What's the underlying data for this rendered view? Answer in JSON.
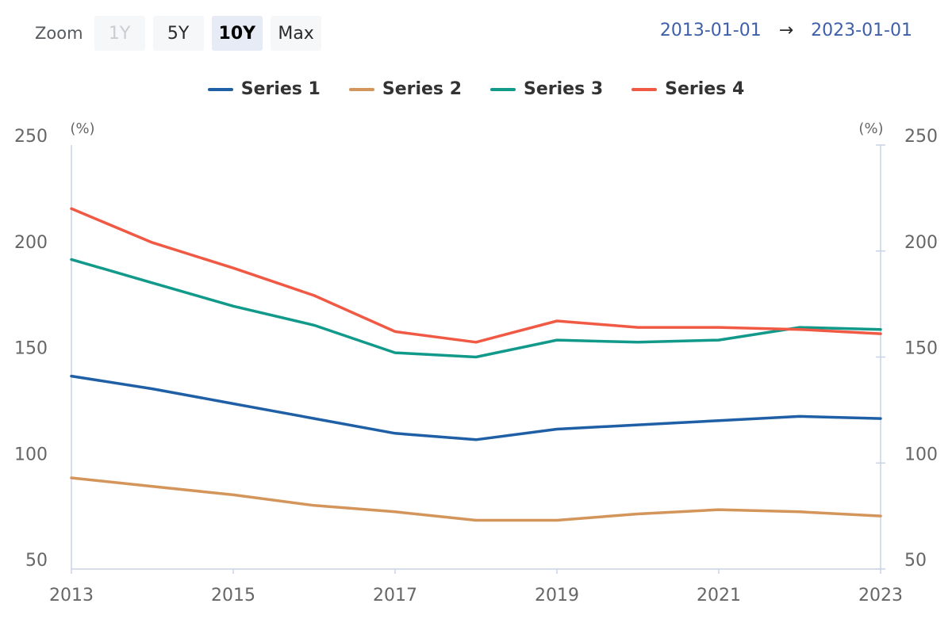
{
  "zoom": {
    "label": "Zoom",
    "buttons": [
      {
        "label": "1Y",
        "state": "disabled"
      },
      {
        "label": "5Y",
        "state": "normal"
      },
      {
        "label": "10Y",
        "state": "active"
      },
      {
        "label": "Max",
        "state": "normal"
      }
    ]
  },
  "range": {
    "from": "2013-01-01",
    "arrow": "→",
    "to": "2023-01-01"
  },
  "colors": {
    "series1": "#1f5fa6",
    "series2": "#d4955a",
    "series3": "#11998a",
    "series4": "#f05a45",
    "axis": "#c9d3e6",
    "grid": "#e6eaf2"
  },
  "chart_data": {
    "type": "line",
    "x": [
      2013,
      2014,
      2015,
      2016,
      2017,
      2018,
      2019,
      2020,
      2021,
      2022,
      2023
    ],
    "xticks": [
      2013,
      2015,
      2017,
      2019,
      2021,
      2023
    ],
    "xlim": [
      2013,
      2023
    ],
    "ylim": [
      50,
      250
    ],
    "yticks": [
      250,
      200,
      150,
      100,
      50
    ],
    "ylabel_left": "(%)",
    "ylabel_right": "(%)",
    "legend_position": "top-center",
    "series": [
      {
        "name": "Series 1",
        "values": [
          141,
          135,
          128,
          121,
          114,
          111,
          116,
          118,
          120,
          122,
          121
        ]
      },
      {
        "name": "Series 2",
        "values": [
          93,
          89,
          85,
          80,
          77,
          73,
          73,
          76,
          78,
          77,
          75
        ]
      },
      {
        "name": "Series 3",
        "values": [
          196,
          185,
          174,
          165,
          152,
          150,
          158,
          157,
          158,
          164,
          163
        ]
      },
      {
        "name": "Series 4",
        "values": [
          220,
          204,
          192,
          179,
          162,
          157,
          167,
          164,
          164,
          163,
          161
        ]
      }
    ]
  }
}
